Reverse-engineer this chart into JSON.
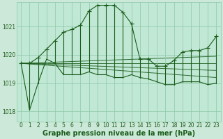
{
  "title": "Graphe pression niveau de la mer (hPa)",
  "bg_color": "#cce8d8",
  "plot_bg_color": "#c0e8d5",
  "line_color": "#1a5c1a",
  "grid_color": "#8fc8a8",
  "tick_color": "#1a5c1a",
  "ylim": [
    1017.65,
    1021.85
  ],
  "yticks": [
    1018,
    1019,
    1020,
    1021
  ],
  "xticks": [
    0,
    1,
    2,
    3,
    4,
    5,
    6,
    7,
    8,
    9,
    10,
    11,
    12,
    13,
    14,
    15,
    16,
    17,
    18,
    19,
    20,
    21,
    22,
    23
  ],
  "hours": [
    0,
    1,
    2,
    3,
    4,
    5,
    6,
    7,
    8,
    9,
    10,
    11,
    12,
    13,
    14,
    15,
    16,
    17,
    18,
    19,
    20,
    21,
    22,
    23
  ],
  "hi": [
    1019.7,
    1019.7,
    1019.9,
    1020.2,
    1020.5,
    1020.8,
    1020.9,
    1021.05,
    1021.55,
    1021.75,
    1021.75,
    1021.75,
    1021.5,
    1021.1,
    1019.85,
    1019.85,
    1019.6,
    1019.6,
    1019.8,
    1020.1,
    1020.15,
    1020.15,
    1020.25,
    1020.65
  ],
  "lo": [
    1019.7,
    1018.05,
    1019.0,
    1019.85,
    1019.7,
    1019.3,
    1019.3,
    1019.3,
    1019.4,
    1019.3,
    1019.3,
    1019.2,
    1019.2,
    1019.3,
    1019.2,
    1019.15,
    1019.05,
    1018.95,
    1018.95,
    1019.05,
    1019.05,
    1019.05,
    1018.95,
    1019.0
  ],
  "trend_lines": [
    {
      "x0": 0,
      "x1": 23,
      "y0": 1019.7,
      "y1": 1019.2
    },
    {
      "x0": 0,
      "x1": 23,
      "y0": 1019.7,
      "y1": 1019.45
    },
    {
      "x0": 0,
      "x1": 23,
      "y0": 1019.7,
      "y1": 1019.7
    },
    {
      "x0": 0,
      "x1": 23,
      "y0": 1019.7,
      "y1": 1019.95
    }
  ],
  "tick_fontsize": 5.5,
  "label_fontsize": 7,
  "markersize": 2.2,
  "linewidth": 0.8
}
